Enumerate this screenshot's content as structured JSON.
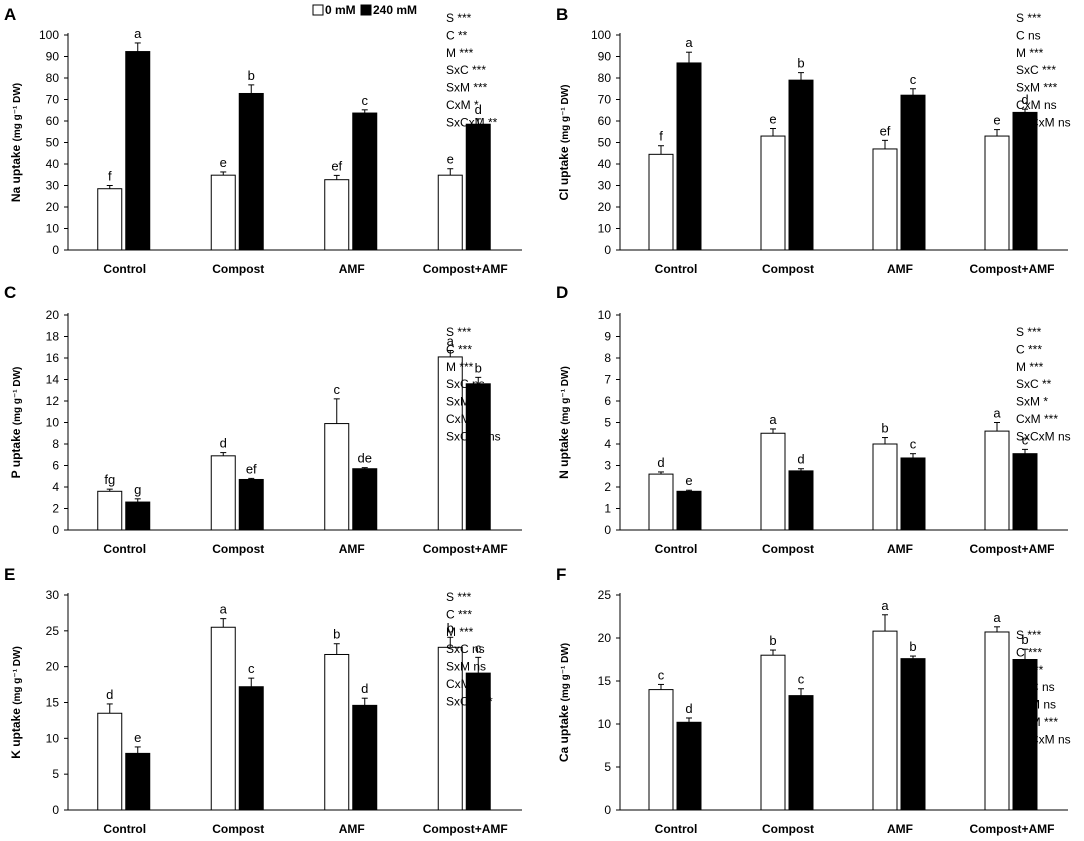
{
  "legend": {
    "items": [
      {
        "label": "0 mM",
        "color": "#ffffff"
      },
      {
        "label": "240 mM",
        "color": "#000000"
      }
    ]
  },
  "chart_data": [
    {
      "panel": "A",
      "type": "bar",
      "ylabel": "Na uptake",
      "ylabel_unit": "(mg g⁻¹ DW)",
      "categories": [
        "Control",
        "Compost",
        "AMF",
        "Compost+AMF"
      ],
      "ylim": [
        0,
        100
      ],
      "ystep": 10,
      "series": [
        {
          "name": "0 mM",
          "values": [
            28.5,
            34.8,
            32.7,
            34.8
          ],
          "errors": [
            1.5,
            1.5,
            2,
            3
          ],
          "letters": [
            "f",
            "e",
            "ef",
            "e"
          ]
        },
        {
          "name": "240 mM",
          "values": [
            92.3,
            72.8,
            63.7,
            58.5
          ],
          "errors": [
            4,
            4,
            1.5,
            2.5
          ],
          "letters": [
            "a",
            "b",
            "c",
            "d"
          ]
        }
      ],
      "stats": [
        "S ***",
        "C **",
        "M ***",
        "SxC ***",
        "SxM ***",
        "CxM *",
        "SxCxM **"
      ]
    },
    {
      "panel": "B",
      "type": "bar",
      "ylabel": "Cl uptake",
      "ylabel_unit": "(mg g⁻¹ DW)",
      "categories": [
        "Control",
        "Compost",
        "AMF",
        "Compost+AMF"
      ],
      "ylim": [
        0,
        100
      ],
      "ystep": 10,
      "series": [
        {
          "name": "0 mM",
          "values": [
            44.5,
            53.0,
            47.0,
            53.0
          ],
          "errors": [
            4,
            3.5,
            4,
            3
          ],
          "letters": [
            "f",
            "e",
            "ef",
            "e"
          ]
        },
        {
          "name": "240 mM",
          "values": [
            87.0,
            79.0,
            72.0,
            64.0
          ],
          "errors": [
            5,
            3.5,
            3,
            1.5
          ],
          "letters": [
            "a",
            "b",
            "c",
            "d"
          ]
        }
      ],
      "stats": [
        "S ***",
        "C ns",
        "M ***",
        "SxC ***",
        "SxM ***",
        "CxM ns",
        "SxCxM ns"
      ]
    },
    {
      "panel": "C",
      "type": "bar",
      "ylabel": "P uptake",
      "ylabel_unit": "(mg g⁻¹ DW)",
      "categories": [
        "Control",
        "Compost",
        "AMF",
        "Compost+AMF"
      ],
      "ylim": [
        0,
        20
      ],
      "ystep": 2,
      "series": [
        {
          "name": "0 mM",
          "values": [
            3.6,
            6.9,
            9.9,
            16.1
          ],
          "errors": [
            0.2,
            0.3,
            2.3,
            0.6
          ],
          "letters": [
            "fg",
            "d",
            "c",
            "a"
          ]
        },
        {
          "name": "240 mM",
          "values": [
            2.6,
            4.7,
            5.7,
            13.6
          ],
          "errors": [
            0.3,
            0.1,
            0.1,
            0.6
          ],
          "letters": [
            "g",
            "ef",
            "de",
            "b"
          ]
        }
      ],
      "stats": [
        "S ***",
        "C ***",
        "M ***",
        "SxC ns",
        "SxM *",
        "CxM ***",
        "SxCxM ns"
      ]
    },
    {
      "panel": "D",
      "type": "bar",
      "ylabel": "N uptake",
      "ylabel_unit": "(mg g⁻¹ DW)",
      "categories": [
        "Control",
        "Compost",
        "AMF",
        "Compost+AMF"
      ],
      "ylim": [
        0,
        10
      ],
      "ystep": 1,
      "series": [
        {
          "name": "0 mM",
          "values": [
            2.6,
            4.5,
            4.0,
            4.6
          ],
          "errors": [
            0.1,
            0.2,
            0.3,
            0.4
          ],
          "letters": [
            "d",
            "a",
            "b",
            "a"
          ]
        },
        {
          "name": "240 mM",
          "values": [
            1.8,
            2.75,
            3.35,
            3.55
          ],
          "errors": [
            0.05,
            0.1,
            0.2,
            0.2
          ],
          "letters": [
            "e",
            "d",
            "c",
            "c"
          ]
        }
      ],
      "stats": [
        "S ***",
        "C ***",
        "M ***",
        "SxC **",
        "SxM *",
        "CxM ***",
        "SxCxM ns"
      ]
    },
    {
      "panel": "E",
      "type": "bar",
      "ylabel": "K uptake",
      "ylabel_unit": "(mg g⁻¹ DW)",
      "categories": [
        "Control",
        "Compost",
        "AMF",
        "Compost+AMF"
      ],
      "ylim": [
        0,
        30
      ],
      "ystep": 5,
      "series": [
        {
          "name": "0 mM",
          "values": [
            13.5,
            25.5,
            21.7,
            22.7
          ],
          "errors": [
            1.3,
            1.2,
            1.5,
            1.4
          ],
          "letters": [
            "d",
            "a",
            "b",
            "b"
          ]
        },
        {
          "name": "240 mM",
          "values": [
            7.9,
            17.2,
            14.6,
            19.1
          ],
          "errors": [
            0.9,
            1.2,
            1.0,
            2.2
          ],
          "letters": [
            "e",
            "c",
            "d",
            "c"
          ]
        }
      ],
      "stats": [
        "S ***",
        "C ***",
        "M ***",
        "SxC ns",
        "SxM ns",
        "CxM ***",
        "SxCxM *"
      ]
    },
    {
      "panel": "F",
      "type": "bar",
      "ylabel": "Ca uptake",
      "ylabel_unit": "(mg g⁻¹ DW)",
      "categories": [
        "Control",
        "Compost",
        "AMF",
        "Compost+AMF"
      ],
      "ylim": [
        0,
        25
      ],
      "ystep": 5,
      "series": [
        {
          "name": "0 mM",
          "values": [
            14.0,
            18.0,
            20.8,
            20.7
          ],
          "errors": [
            0.6,
            0.6,
            1.9,
            0.6
          ],
          "letters": [
            "c",
            "b",
            "a",
            "a"
          ]
        },
        {
          "name": "240 mM",
          "values": [
            10.2,
            13.3,
            17.6,
            17.5
          ],
          "errors": [
            0.5,
            0.8,
            0.3,
            1.2
          ],
          "letters": [
            "d",
            "c",
            "b",
            "b"
          ]
        }
      ],
      "stats": [
        "S ***",
        "C ***",
        "M ***",
        "SxC ns",
        "SxM ns",
        "CxM ***",
        "SxCxM ns"
      ]
    }
  ]
}
